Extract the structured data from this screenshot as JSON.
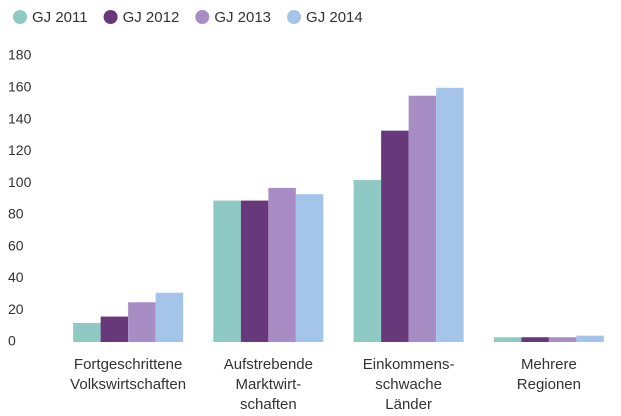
{
  "chart_data": {
    "type": "bar",
    "categories": [
      [
        "Fortgeschrittene",
        "Volkswirtschaften"
      ],
      [
        "Aufstrebende",
        "Marktwirt-",
        "schaften"
      ],
      [
        "Einkommens-",
        "schwache",
        "Länder"
      ],
      [
        "Mehrere",
        "Regionen"
      ]
    ],
    "series": [
      {
        "name": "GJ 2011",
        "color": "#8ecac3",
        "values": [
          12,
          89,
          102,
          3
        ]
      },
      {
        "name": "GJ 2012",
        "color": "#67397a",
        "values": [
          16,
          89,
          133,
          3
        ]
      },
      {
        "name": "GJ 2013",
        "color": "#a88cc4",
        "values": [
          25,
          97,
          155,
          3
        ]
      },
      {
        "name": "GJ 2014",
        "color": "#a5c4ea",
        "values": [
          31,
          93,
          160,
          4
        ]
      }
    ],
    "ylim": [
      0,
      180
    ],
    "yticks": [
      0,
      20,
      40,
      60,
      80,
      100,
      120,
      140,
      160,
      180
    ],
    "grid": false
  }
}
